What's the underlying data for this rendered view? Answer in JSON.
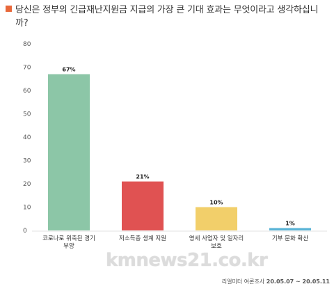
{
  "header": {
    "title": "당신은 정부의 긴급재난지원금 지급의 가장 큰 기대 효과는 무엇이라고 생각하십니까?"
  },
  "chart_data": {
    "type": "bar",
    "categories": [
      [
        "코로나로 위축된 경기",
        "부양"
      ],
      [
        "저소득층 생계 지원"
      ],
      [
        "영세 사업자 및 일자리",
        "보호"
      ],
      [
        "기부 문화 확산"
      ]
    ],
    "values": [
      67,
      21,
      10,
      1
    ],
    "data_labels": [
      "67%",
      "21%",
      "10%",
      "1%"
    ],
    "colors": [
      "#8cc6a7",
      "#e05252",
      "#f2cf6a",
      "#5ab4d6"
    ],
    "ylim": [
      0,
      80
    ],
    "yticks": [
      0,
      10,
      20,
      30,
      40,
      50,
      60,
      70,
      80
    ],
    "grid": false,
    "legend": "none"
  },
  "watermark": "kmnews21.co.kr",
  "source": {
    "text": "리얼미터 여론조사",
    "date": "20.05.07 ~ 20.05.11"
  }
}
